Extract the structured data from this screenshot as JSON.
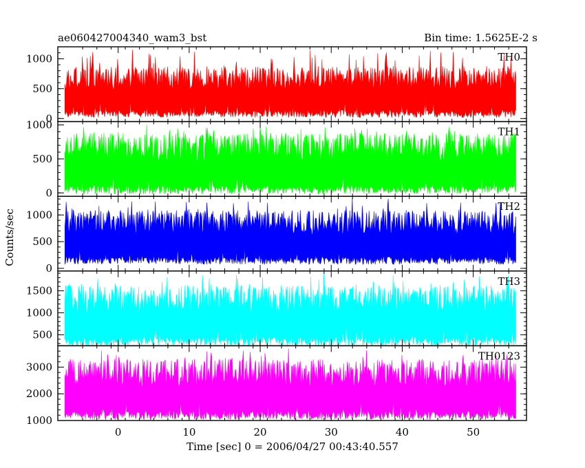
{
  "chart_data": {
    "type": "line",
    "title": "ae060427004340_wam3_bst",
    "subtitle": "Bin time: 1.5625E-2 s",
    "xlabel": "Time [sec] 0 = 2006/04/27 00:43:40.557",
    "ylabel": "Counts/sec",
    "xlim": [
      -8.5,
      57.5
    ],
    "x_ticks": [
      0,
      10,
      20,
      30,
      40,
      50
    ],
    "data_x_range": [
      -7.5,
      56
    ],
    "bin_time_s": 0.015625,
    "legend_placement": "top-right of each panel",
    "grid": false,
    "series": [
      {
        "name": "TH0",
        "color": "#ff0000",
        "ylim": [
          -50,
          1200
        ],
        "y_ticks": [
          0,
          500,
          1000
        ],
        "low_envelope": 80,
        "typical_top": 800,
        "peak": 1150,
        "notable_peaks": [
          {
            "x": 2,
            "y": 1150
          },
          {
            "x": 27,
            "y": 1140
          },
          {
            "x": 44,
            "y": 1130
          }
        ]
      },
      {
        "name": "TH1",
        "color": "#00ff00",
        "ylim": [
          -50,
          1050
        ],
        "y_ticks": [
          0,
          500,
          1000
        ],
        "low_envelope": 50,
        "typical_top": 800,
        "peak": 1000,
        "notable_peaks": [
          {
            "x": 4,
            "y": 1000
          },
          {
            "x": 20,
            "y": 990
          }
        ]
      },
      {
        "name": "TH2",
        "color": "#0000ff",
        "ylim": [
          -50,
          1350
        ],
        "y_ticks": [
          0,
          500,
          1000
        ],
        "low_envelope": 150,
        "typical_top": 1000,
        "peak": 1320,
        "notable_peaks": [
          {
            "x": 33,
            "y": 1320
          },
          {
            "x": 38,
            "y": 1300
          }
        ]
      },
      {
        "name": "TH3",
        "color": "#00ffff",
        "ylim": [
          250,
          1950
        ],
        "y_ticks": [
          500,
          1000,
          1500
        ],
        "low_envelope": 350,
        "typical_top": 1500,
        "peak": 1900,
        "notable_peaks": [
          {
            "x": 29,
            "y": 1900
          }
        ]
      },
      {
        "name": "TH0123",
        "color": "#ff00ff",
        "ylim": [
          1000,
          3800
        ],
        "y_ticks": [
          1000,
          2000,
          3000
        ],
        "low_envelope": 1200,
        "typical_top": 3100,
        "peak": 3700,
        "notable_peaks": [
          {
            "x": 24,
            "y": 3700
          }
        ]
      }
    ]
  }
}
